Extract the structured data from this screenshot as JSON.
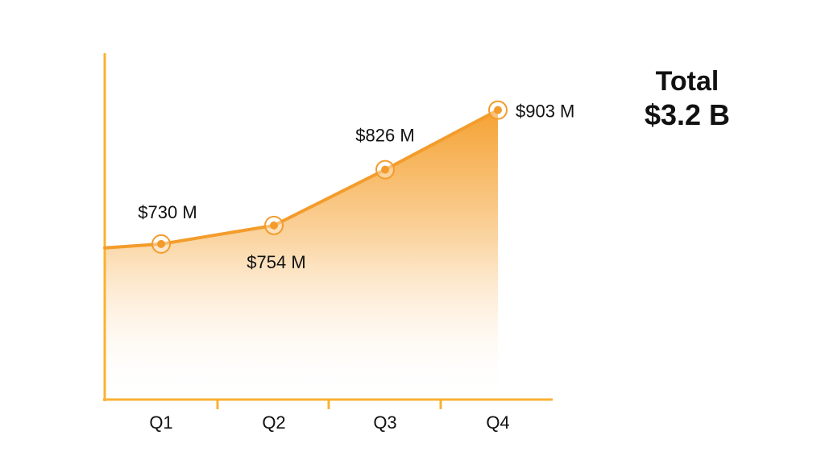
{
  "chart_data": {
    "type": "area",
    "categories": [
      "Q1",
      "Q2",
      "Q3",
      "Q4"
    ],
    "values": [
      730,
      754,
      826,
      903
    ],
    "data_labels": [
      "$730 M",
      "$754 M",
      "$826 M",
      "$903 M"
    ],
    "unit": "$ M",
    "grid": false,
    "legend": "none"
  },
  "summary": {
    "label": "Total",
    "value": "$3.2 B"
  },
  "colors": {
    "accent": "#F39C2B",
    "axis": "#F9B233",
    "fill_top": "#F5A233",
    "fill_bottom": "#FFFFFF",
    "text": "#111111"
  }
}
